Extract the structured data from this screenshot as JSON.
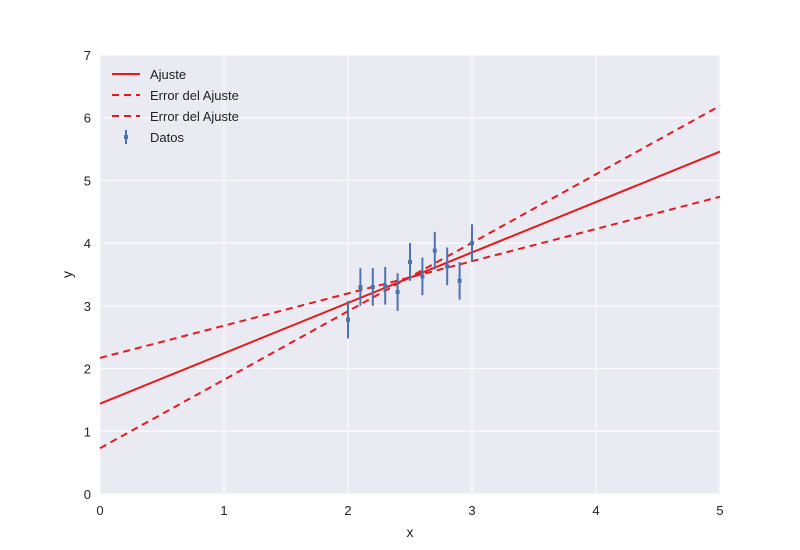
{
  "chart_data": {
    "type": "line",
    "title": "",
    "xlabel": "x",
    "ylabel": "y",
    "xlim": [
      0,
      5
    ],
    "ylim": [
      0,
      7
    ],
    "xticks": [
      "0",
      "1",
      "2",
      "3",
      "4",
      "5"
    ],
    "yticks": [
      "0",
      "1",
      "2",
      "3",
      "4",
      "5",
      "6",
      "7"
    ],
    "grid": true,
    "legend_position": "top-left",
    "colors": {
      "fit": "#e41a1c",
      "data": "#4c72b0",
      "background": "#eaeaf2",
      "grid": "#ffffff"
    },
    "series": [
      {
        "name": "Ajuste",
        "kind": "line",
        "style": "solid",
        "x": [
          0,
          5
        ],
        "y": [
          1.44,
          5.46
        ]
      },
      {
        "name": "Error del Ajuste",
        "kind": "line",
        "style": "dashed",
        "x": [
          0,
          5
        ],
        "y": [
          2.17,
          4.74
        ]
      },
      {
        "name": "Error del Ajuste",
        "kind": "line",
        "style": "dashed",
        "x": [
          0,
          5
        ],
        "y": [
          0.73,
          6.19
        ]
      },
      {
        "name": "Datos",
        "kind": "errorbar",
        "x": [
          2.0,
          2.1,
          2.2,
          2.3,
          2.4,
          2.5,
          2.6,
          2.7,
          2.8,
          2.9,
          3.0
        ],
        "y": [
          2.78,
          3.3,
          3.3,
          3.32,
          3.22,
          3.7,
          3.47,
          3.88,
          3.63,
          3.4,
          4.0
        ],
        "yerr": [
          0.3,
          0.3,
          0.3,
          0.3,
          0.3,
          0.3,
          0.3,
          0.3,
          0.3,
          0.3,
          0.3
        ]
      }
    ]
  }
}
